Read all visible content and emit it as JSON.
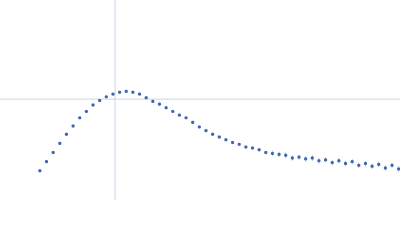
{
  "chart_data": {
    "type": "scatter",
    "x": [
      0.6,
      0.7,
      0.8,
      0.9,
      1.0,
      1.1,
      1.2,
      1.3,
      1.4,
      1.5,
      1.6,
      1.7,
      1.8,
      1.9,
      2.0,
      2.1,
      2.2,
      2.3,
      2.4,
      2.5,
      2.6,
      2.7,
      2.8,
      2.9,
      3.0,
      3.1,
      3.2,
      3.3,
      3.4,
      3.5,
      3.6,
      3.7,
      3.8,
      3.9,
      4.0,
      4.1,
      4.2,
      4.3,
      4.4,
      4.5,
      4.6,
      4.7,
      4.8,
      4.9,
      5.0,
      5.1,
      5.2,
      5.3,
      5.4,
      5.5,
      5.6,
      5.7,
      5.8,
      5.9,
      6.0
    ],
    "series": [
      {
        "color": "#3a66b4",
        "values": [
          0.32,
          0.42,
          0.52,
          0.62,
          0.72,
          0.81,
          0.9,
          0.97,
          1.04,
          1.09,
          1.13,
          1.16,
          1.18,
          1.19,
          1.18,
          1.16,
          1.12,
          1.08,
          1.05,
          1.01,
          0.97,
          0.93,
          0.9,
          0.85,
          0.8,
          0.76,
          0.72,
          0.69,
          0.66,
          0.63,
          0.61,
          0.58,
          0.57,
          0.55,
          0.52,
          0.51,
          0.5,
          0.49,
          0.46,
          0.47,
          0.45,
          0.46,
          0.43,
          0.44,
          0.41,
          0.43,
          0.4,
          0.42,
          0.38,
          0.4,
          0.37,
          0.39,
          0.35,
          0.38,
          0.34
        ],
        "errors": [
          0.005,
          0.005,
          0.005,
          0.005,
          0.005,
          0.005,
          0.005,
          0.005,
          0.005,
          0.005,
          0.005,
          0.005,
          0.005,
          0.005,
          0.005,
          0.005,
          0.005,
          0.005,
          0.005,
          0.005,
          0.015,
          0.015,
          0.015,
          0.015,
          0.015,
          0.015,
          0.015,
          0.015,
          0.015,
          0.015,
          0.015,
          0.015,
          0.015,
          0.015,
          0.015,
          0.03,
          0.03,
          0.03,
          0.03,
          0.03,
          0.03,
          0.03,
          0.03,
          0.03,
          0.03,
          0.03,
          0.03,
          0.03,
          0.03,
          0.03,
          0.03,
          0.03,
          0.03,
          0.03,
          0.03
        ]
      }
    ],
    "xlim": [
      0,
      6.02
    ],
    "ylim": [
      0,
      2.19
    ],
    "crosshair": {
      "x": 1.732,
      "y": 1.104
    },
    "crosshair_color": "#c9d5e8"
  }
}
